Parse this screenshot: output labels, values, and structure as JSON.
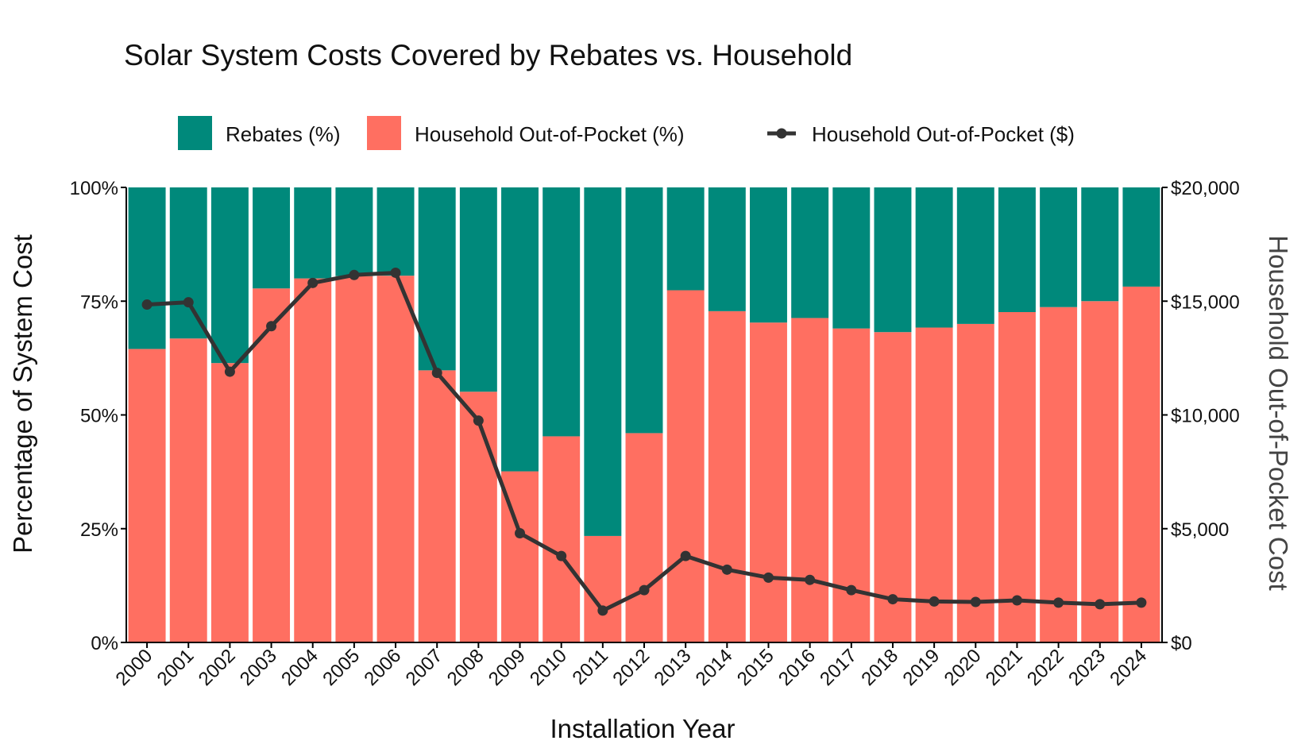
{
  "colors": {
    "rebates": "#00897B",
    "household": "#FF6F61",
    "line": "#333333"
  },
  "chart_data": {
    "type": "bar",
    "stacked": true,
    "title": "Solar System Costs Covered by Rebates vs. Household",
    "xlabel": "Installation Year",
    "ylabel": "Percentage of System Cost",
    "y2label": "Household Out-of-Pocket Cost",
    "ylim": [
      0,
      100
    ],
    "y2lim": [
      0,
      20000
    ],
    "yticks": [
      "0%",
      "25%",
      "50%",
      "75%",
      "100%"
    ],
    "y2ticks": [
      "$0",
      "$5,000",
      "$10,000",
      "$15,000",
      "$20,000"
    ],
    "legend_position": "top",
    "grid": false,
    "categories": [
      "2000",
      "2001",
      "2002",
      "2003",
      "2004",
      "2005",
      "2006",
      "2007",
      "2008",
      "2009",
      "2010",
      "2011",
      "2012",
      "2013",
      "2014",
      "2015",
      "2016",
      "2017",
      "2018",
      "2019",
      "2020",
      "2021",
      "2022",
      "2023",
      "2024"
    ],
    "series": [
      {
        "name": "Household Out-of-Pocket (%)",
        "type": "bar",
        "axis": "left",
        "values": [
          64.5,
          66.8,
          61.4,
          77.8,
          80.0,
          80.5,
          80.6,
          59.8,
          55.1,
          37.6,
          45.3,
          23.4,
          46.0,
          77.4,
          72.8,
          70.3,
          71.3,
          69.0,
          68.2,
          69.2,
          70.0,
          72.6,
          73.7,
          75.0,
          78.2
        ]
      },
      {
        "name": "Rebates (%)",
        "type": "bar",
        "axis": "left",
        "values": [
          35.5,
          33.2,
          38.6,
          22.2,
          20.0,
          19.5,
          19.4,
          40.2,
          44.9,
          62.4,
          54.7,
          76.6,
          54.0,
          22.6,
          27.2,
          29.7,
          28.7,
          31.0,
          31.8,
          30.8,
          30.0,
          27.4,
          26.3,
          25.0,
          21.8
        ]
      },
      {
        "name": "Household Out-of-Pocket ($)",
        "type": "line",
        "axis": "right",
        "values": [
          14850,
          14950,
          11900,
          13900,
          15800,
          16150,
          16250,
          11850,
          9750,
          4800,
          3800,
          1400,
          2300,
          3800,
          3200,
          2850,
          2750,
          2300,
          1900,
          1800,
          1780,
          1850,
          1750,
          1680,
          1750
        ]
      }
    ]
  }
}
